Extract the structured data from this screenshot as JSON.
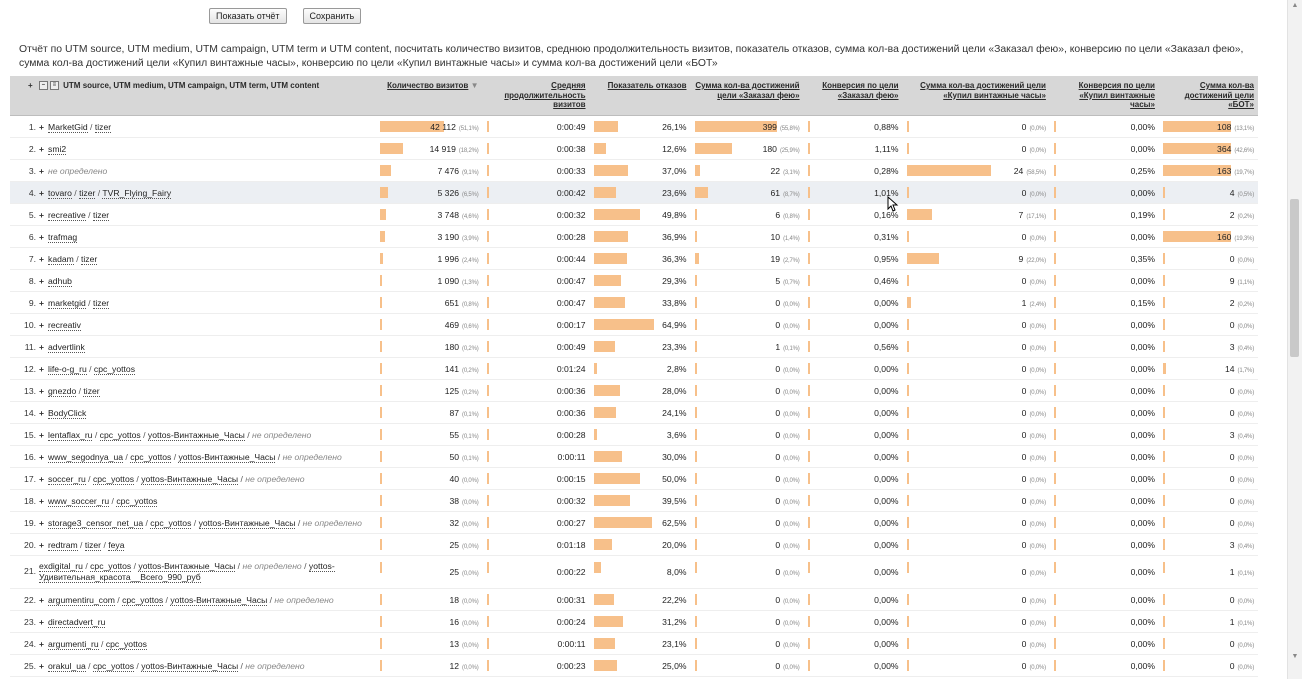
{
  "toolbar": {
    "show_report_label": "Показать отчёт",
    "save_label": "Сохранить"
  },
  "description": "Отчёт по UTM source, UTM medium, UTM campaign, UTM term и UTM content, посчитать количество визитов, среднюю продолжительность визитов, показатель отказов, сумма кол-ва достижений цели «Заказал фею», конверсию по цели «Заказал фею», сумма кол-ва достижений цели «Купил винтажные часы», конверсию по цели «Купил винтажные часы» и сумма кол-ва достижений цели «БОТ»",
  "colors": {
    "bar": "#f7c08a",
    "header_bg": "#d7d7d7",
    "highlight_row": "#eceff3"
  },
  "header": {
    "dimension": "UTM source, UTM medium, UTM campaign, UTM term, UTM content",
    "columns": [
      "Количество визитов",
      "Средняя продолжительность визитов",
      "Показатель отказов",
      "Сумма кол-ва достижений цели «Заказал фею»",
      "Конверсия по цели «Заказал фею»",
      "Сумма кол-ва достижений цели «Купил винтажные часы»",
      "Конверсия по цели «Купил винтажные часы»",
      "Сумма кол-ва достижений цели «БОТ»"
    ],
    "sort_icon": "sort-desc-icon"
  },
  "rows": [
    {
      "num": "1.",
      "parts": [
        "MarketGid",
        "tizer"
      ],
      "visits": "42 112",
      "visits_pct": "(51,1%)",
      "visits_bar": 1.0,
      "duration": "0:00:49",
      "bounce": "26,1%",
      "bounce_bar": 0.261,
      "g1": "399",
      "g1_pct": "(55,8%)",
      "g1_bar": 1.0,
      "conv1": "0,88%",
      "g2": "0",
      "g2_pct": "(0,0%)",
      "g2_bar": 0,
      "conv2": "0,00%",
      "g3": "108",
      "g3_pct": "(13,1%)",
      "g3_bar": 1.0
    },
    {
      "num": "2.",
      "parts": [
        "smi2"
      ],
      "visits": "14 919",
      "visits_pct": "(18,2%)",
      "visits_bar": 0.354,
      "duration": "0:00:38",
      "bounce": "12,6%",
      "bounce_bar": 0.126,
      "g1": "180",
      "g1_pct": "(25,9%)",
      "g1_bar": 0.451,
      "conv1": "1,11%",
      "g2": "0",
      "g2_pct": "(0,0%)",
      "g2_bar": 0,
      "conv2": "0,00%",
      "g3": "364",
      "g3_pct": "(42,6%)",
      "g3_bar": 1.0
    },
    {
      "num": "3.",
      "parts": [
        "не определено"
      ],
      "undef": [
        0
      ],
      "visits": "7 476",
      "visits_pct": "(9,1%)",
      "visits_bar": 0.177,
      "duration": "0:00:33",
      "bounce": "37,0%",
      "bounce_bar": 0.37,
      "g1": "22",
      "g1_pct": "(3,1%)",
      "g1_bar": 0.055,
      "conv1": "0,28%",
      "g2": "24",
      "g2_pct": "(58,5%)",
      "g2_bar": 1.0,
      "conv2": "0,25%",
      "g3": "163",
      "g3_pct": "(19,7%)",
      "g3_bar": 1.0
    },
    {
      "num": "4.",
      "parts": [
        "tovaro",
        "tizer",
        "TVR_Flying_Fairy"
      ],
      "visits": "5 326",
      "visits_pct": "(6,5%)",
      "visits_bar": 0.126,
      "duration": "0:00:42",
      "bounce": "23,6%",
      "bounce_bar": 0.236,
      "g1": "61",
      "g1_pct": "(8,7%)",
      "g1_bar": 0.153,
      "conv1": "1,01%",
      "g2": "0",
      "g2_pct": "(0,0%)",
      "g2_bar": 0,
      "conv2": "0,00%",
      "g3": "4",
      "g3_pct": "(0,5%)",
      "g3_bar": 0.011,
      "highlight": true
    },
    {
      "num": "5.",
      "parts": [
        "recreative",
        "tizer"
      ],
      "visits": "3 748",
      "visits_pct": "(4,6%)",
      "visits_bar": 0.089,
      "duration": "0:00:32",
      "bounce": "49,8%",
      "bounce_bar": 0.498,
      "g1": "6",
      "g1_pct": "(0,8%)",
      "g1_bar": 0.015,
      "conv1": "0,16%",
      "g2": "7",
      "g2_pct": "(17,1%)",
      "g2_bar": 0.292,
      "conv2": "0,19%",
      "g3": "2",
      "g3_pct": "(0,2%)",
      "g3_bar": 0.005
    },
    {
      "num": "6.",
      "parts": [
        "trafmag"
      ],
      "visits": "3 190",
      "visits_pct": "(3,9%)",
      "visits_bar": 0.076,
      "duration": "0:00:28",
      "bounce": "36,9%",
      "bounce_bar": 0.369,
      "g1": "10",
      "g1_pct": "(1,4%)",
      "g1_bar": 0.025,
      "conv1": "0,31%",
      "g2": "0",
      "g2_pct": "(0,0%)",
      "g2_bar": 0,
      "conv2": "0,00%",
      "g3": "160",
      "g3_pct": "(19,3%)",
      "g3_bar": 1.0
    },
    {
      "num": "7.",
      "parts": [
        "kadam",
        "tizer"
      ],
      "visits": "1 996",
      "visits_pct": "(2,4%)",
      "visits_bar": 0.047,
      "duration": "0:00:44",
      "bounce": "36,3%",
      "bounce_bar": 0.363,
      "g1": "19",
      "g1_pct": "(2,7%)",
      "g1_bar": 0.048,
      "conv1": "0,95%",
      "g2": "9",
      "g2_pct": "(22,0%)",
      "g2_bar": 0.375,
      "conv2": "0,35%",
      "g3": "0",
      "g3_pct": "(0,0%)",
      "g3_bar": 0
    },
    {
      "num": "8.",
      "parts": [
        "adhub"
      ],
      "visits": "1 090",
      "visits_pct": "(1,3%)",
      "visits_bar": 0.026,
      "duration": "0:00:47",
      "bounce": "29,3%",
      "bounce_bar": 0.293,
      "g1": "5",
      "g1_pct": "(0,7%)",
      "g1_bar": 0.013,
      "conv1": "0,46%",
      "g2": "0",
      "g2_pct": "(0,0%)",
      "g2_bar": 0,
      "conv2": "0,00%",
      "g3": "9",
      "g3_pct": "(1,1%)",
      "g3_bar": 0.025
    },
    {
      "num": "9.",
      "parts": [
        "marketgid",
        "tizer"
      ],
      "visits": "651",
      "visits_pct": "(0,8%)",
      "visits_bar": 0.015,
      "duration": "0:00:47",
      "bounce": "33,8%",
      "bounce_bar": 0.338,
      "g1": "0",
      "g1_pct": "(0,0%)",
      "g1_bar": 0,
      "conv1": "0,00%",
      "g2": "1",
      "g2_pct": "(2,4%)",
      "g2_bar": 0.042,
      "conv2": "0,15%",
      "g3": "2",
      "g3_pct": "(0,2%)",
      "g3_bar": 0.005
    },
    {
      "num": "10.",
      "parts": [
        "recreativ"
      ],
      "visits": "469",
      "visits_pct": "(0,6%)",
      "visits_bar": 0.011,
      "duration": "0:00:17",
      "bounce": "64,9%",
      "bounce_bar": 0.649,
      "g1": "0",
      "g1_pct": "(0,0%)",
      "g1_bar": 0,
      "conv1": "0,00%",
      "g2": "0",
      "g2_pct": "(0,0%)",
      "g2_bar": 0,
      "conv2": "0,00%",
      "g3": "0",
      "g3_pct": "(0,0%)",
      "g3_bar": 0
    },
    {
      "num": "11.",
      "parts": [
        "advertlink"
      ],
      "visits": "180",
      "visits_pct": "(0,2%)",
      "visits_bar": 0.004,
      "duration": "0:00:49",
      "bounce": "23,3%",
      "bounce_bar": 0.233,
      "g1": "1",
      "g1_pct": "(0,1%)",
      "g1_bar": 0.003,
      "conv1": "0,56%",
      "g2": "0",
      "g2_pct": "(0,0%)",
      "g2_bar": 0,
      "conv2": "0,00%",
      "g3": "3",
      "g3_pct": "(0,4%)",
      "g3_bar": 0.008
    },
    {
      "num": "12.",
      "parts": [
        "life-o-g_ru",
        "cpc_yottos"
      ],
      "visits": "141",
      "visits_pct": "(0,2%)",
      "visits_bar": 0.003,
      "duration": "0:01:24",
      "bounce": "2,8%",
      "bounce_bar": 0.028,
      "g1": "0",
      "g1_pct": "(0,0%)",
      "g1_bar": 0,
      "conv1": "0,00%",
      "g2": "0",
      "g2_pct": "(0,0%)",
      "g2_bar": 0,
      "conv2": "0,00%",
      "g3": "14",
      "g3_pct": "(1,7%)",
      "g3_bar": 0.038
    },
    {
      "num": "13.",
      "parts": [
        "gnezdo",
        "tizer"
      ],
      "visits": "125",
      "visits_pct": "(0,2%)",
      "visits_bar": 0.003,
      "duration": "0:00:36",
      "bounce": "28,0%",
      "bounce_bar": 0.28,
      "g1": "0",
      "g1_pct": "(0,0%)",
      "g1_bar": 0,
      "conv1": "0,00%",
      "g2": "0",
      "g2_pct": "(0,0%)",
      "g2_bar": 0,
      "conv2": "0,00%",
      "g3": "0",
      "g3_pct": "(0,0%)",
      "g3_bar": 0
    },
    {
      "num": "14.",
      "parts": [
        "BodyClick"
      ],
      "visits": "87",
      "visits_pct": "(0,1%)",
      "visits_bar": 0.002,
      "duration": "0:00:36",
      "bounce": "24,1%",
      "bounce_bar": 0.241,
      "g1": "0",
      "g1_pct": "(0,0%)",
      "g1_bar": 0,
      "conv1": "0,00%",
      "g2": "0",
      "g2_pct": "(0,0%)",
      "g2_bar": 0,
      "conv2": "0,00%",
      "g3": "0",
      "g3_pct": "(0,0%)",
      "g3_bar": 0
    },
    {
      "num": "15.",
      "parts": [
        "lentaflax_ru",
        "cpc_yottos",
        "yottos-Винтажные_Часы",
        "не определено"
      ],
      "undef": [
        3
      ],
      "visits": "55",
      "visits_pct": "(0,1%)",
      "visits_bar": 0.001,
      "duration": "0:00:28",
      "bounce": "3,6%",
      "bounce_bar": 0.036,
      "g1": "0",
      "g1_pct": "(0,0%)",
      "g1_bar": 0,
      "conv1": "0,00%",
      "g2": "0",
      "g2_pct": "(0,0%)",
      "g2_bar": 0,
      "conv2": "0,00%",
      "g3": "3",
      "g3_pct": "(0,4%)",
      "g3_bar": 0.008
    },
    {
      "num": "16.",
      "parts": [
        "www_segodnya_ua",
        "cpc_yottos",
        "yottos-Винтажные_Часы",
        "не определено"
      ],
      "undef": [
        3
      ],
      "visits": "50",
      "visits_pct": "(0,1%)",
      "visits_bar": 0.001,
      "duration": "0:00:11",
      "bounce": "30,0%",
      "bounce_bar": 0.3,
      "g1": "0",
      "g1_pct": "(0,0%)",
      "g1_bar": 0,
      "conv1": "0,00%",
      "g2": "0",
      "g2_pct": "(0,0%)",
      "g2_bar": 0,
      "conv2": "0,00%",
      "g3": "0",
      "g3_pct": "(0,0%)",
      "g3_bar": 0
    },
    {
      "num": "17.",
      "parts": [
        "soccer_ru",
        "cpc_yottos",
        "yottos-Винтажные_Часы",
        "не определено"
      ],
      "undef": [
        3
      ],
      "visits": "40",
      "visits_pct": "(0,0%)",
      "visits_bar": 0.001,
      "duration": "0:00:15",
      "bounce": "50,0%",
      "bounce_bar": 0.5,
      "g1": "0",
      "g1_pct": "(0,0%)",
      "g1_bar": 0,
      "conv1": "0,00%",
      "g2": "0",
      "g2_pct": "(0,0%)",
      "g2_bar": 0,
      "conv2": "0,00%",
      "g3": "0",
      "g3_pct": "(0,0%)",
      "g3_bar": 0
    },
    {
      "num": "18.",
      "parts": [
        "www_soccer_ru",
        "cpc_yottos"
      ],
      "visits": "38",
      "visits_pct": "(0,0%)",
      "visits_bar": 0.001,
      "duration": "0:00:32",
      "bounce": "39,5%",
      "bounce_bar": 0.395,
      "g1": "0",
      "g1_pct": "(0,0%)",
      "g1_bar": 0,
      "conv1": "0,00%",
      "g2": "0",
      "g2_pct": "(0,0%)",
      "g2_bar": 0,
      "conv2": "0,00%",
      "g3": "0",
      "g3_pct": "(0,0%)",
      "g3_bar": 0
    },
    {
      "num": "19.",
      "parts": [
        "storage3_censor_net_ua",
        "cpc_yottos",
        "yottos-Винтажные_Часы",
        "не определено"
      ],
      "undef": [
        3
      ],
      "visits": "32",
      "visits_pct": "(0,0%)",
      "visits_bar": 0.001,
      "duration": "0:00:27",
      "bounce": "62,5%",
      "bounce_bar": 0.625,
      "g1": "0",
      "g1_pct": "(0,0%)",
      "g1_bar": 0,
      "conv1": "0,00%",
      "g2": "0",
      "g2_pct": "(0,0%)",
      "g2_bar": 0,
      "conv2": "0,00%",
      "g3": "0",
      "g3_pct": "(0,0%)",
      "g3_bar": 0
    },
    {
      "num": "20.",
      "parts": [
        "redtram",
        "tizer",
        "feya"
      ],
      "visits": "25",
      "visits_pct": "(0,0%)",
      "visits_bar": 0.001,
      "duration": "0:01:18",
      "bounce": "20,0%",
      "bounce_bar": 0.2,
      "g1": "0",
      "g1_pct": "(0,0%)",
      "g1_bar": 0,
      "conv1": "0,00%",
      "g2": "0",
      "g2_pct": "(0,0%)",
      "g2_bar": 0,
      "conv2": "0,00%",
      "g3": "3",
      "g3_pct": "(0,4%)",
      "g3_bar": 0.008
    },
    {
      "num": "21.",
      "parts": [
        "exdigital_ru",
        "cpc_yottos",
        "yottos-Винтажные_Часы",
        "не определено",
        "yottos-Удивительная_красота__Всего_990_руб"
      ],
      "undef": [
        3
      ],
      "tall": true,
      "plain": true,
      "visits": "25",
      "visits_pct": "(0,0%)",
      "visits_bar": 0.001,
      "duration": "0:00:22",
      "bounce": "8,0%",
      "bounce_bar": 0.08,
      "g1": "0",
      "g1_pct": "(0,0%)",
      "g1_bar": 0,
      "conv1": "0,00%",
      "g2": "0",
      "g2_pct": "(0,0%)",
      "g2_bar": 0,
      "conv2": "0,00%",
      "g3": "1",
      "g3_pct": "(0,1%)",
      "g3_bar": 0.003
    },
    {
      "num": "22.",
      "parts": [
        "argumentiru_com",
        "cpc_yottos",
        "yottos-Винтажные_Часы",
        "не определено"
      ],
      "undef": [
        3
      ],
      "visits": "18",
      "visits_pct": "(0,0%)",
      "visits_bar": 0.001,
      "duration": "0:00:31",
      "bounce": "22,2%",
      "bounce_bar": 0.222,
      "g1": "0",
      "g1_pct": "(0,0%)",
      "g1_bar": 0,
      "conv1": "0,00%",
      "g2": "0",
      "g2_pct": "(0,0%)",
      "g2_bar": 0,
      "conv2": "0,00%",
      "g3": "0",
      "g3_pct": "(0,0%)",
      "g3_bar": 0
    },
    {
      "num": "23.",
      "parts": [
        "directadvert_ru"
      ],
      "visits": "16",
      "visits_pct": "(0,0%)",
      "visits_bar": 0.001,
      "duration": "0:00:24",
      "bounce": "31,2%",
      "bounce_bar": 0.312,
      "g1": "0",
      "g1_pct": "(0,0%)",
      "g1_bar": 0,
      "conv1": "0,00%",
      "g2": "0",
      "g2_pct": "(0,0%)",
      "g2_bar": 0,
      "conv2": "0,00%",
      "g3": "1",
      "g3_pct": "(0,1%)",
      "g3_bar": 0.003
    },
    {
      "num": "24.",
      "parts": [
        "argumenti_ru",
        "cpc_yottos"
      ],
      "visits": "13",
      "visits_pct": "(0,0%)",
      "visits_bar": 0.001,
      "duration": "0:00:11",
      "bounce": "23,1%",
      "bounce_bar": 0.231,
      "g1": "0",
      "g1_pct": "(0,0%)",
      "g1_bar": 0,
      "conv1": "0,00%",
      "g2": "0",
      "g2_pct": "(0,0%)",
      "g2_bar": 0,
      "conv2": "0,00%",
      "g3": "0",
      "g3_pct": "(0,0%)",
      "g3_bar": 0
    },
    {
      "num": "25.",
      "parts": [
        "orakul_ua",
        "cpc_yottos",
        "yottos-Винтажные_Часы",
        "не определено"
      ],
      "undef": [
        3
      ],
      "visits": "12",
      "visits_pct": "(0,0%)",
      "visits_bar": 0.001,
      "duration": "0:00:23",
      "bounce": "25,0%",
      "bounce_bar": 0.25,
      "g1": "0",
      "g1_pct": "(0,0%)",
      "g1_bar": 0,
      "conv1": "0,00%",
      "g2": "0",
      "g2_pct": "(0,0%)",
      "g2_bar": 0,
      "conv2": "0,00%",
      "g3": "0",
      "g3_pct": "(0,0%)",
      "g3_bar": 0
    }
  ]
}
